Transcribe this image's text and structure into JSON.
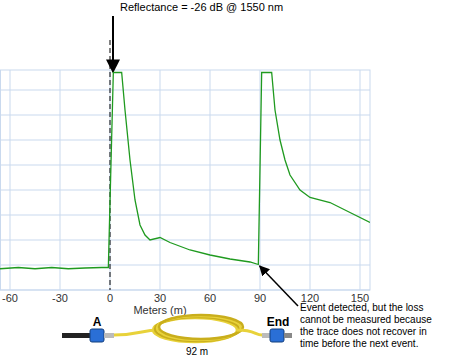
{
  "chart_data": {
    "type": "line",
    "x_label": "Meters (m)",
    "x": [
      -66,
      -55,
      -45,
      -35,
      -25,
      -15,
      -5,
      -1,
      2,
      3,
      7,
      9,
      12,
      15,
      18,
      21,
      24,
      30,
      36,
      48,
      60,
      72,
      84,
      89,
      91,
      97,
      99,
      102,
      105,
      108,
      114,
      120,
      132,
      144,
      156
    ],
    "series": [
      {
        "color": "#1f9a1f",
        "values": [
          0.85,
          0.9,
          0.85,
          0.9,
          0.85,
          0.88,
          0.9,
          0.9,
          8.7,
          8.7,
          8.7,
          7.2,
          5.2,
          3.6,
          2.6,
          2.2,
          2.0,
          2.1,
          1.9,
          1.6,
          1.4,
          1.24,
          1.12,
          1.02,
          8.7,
          8.7,
          7.2,
          6.0,
          5.2,
          4.6,
          4.0,
          3.7,
          3.5,
          3.1,
          2.7
        ]
      }
    ],
    "xlim": [
      -66,
      156
    ],
    "xticks": [
      -60,
      -30,
      0,
      30,
      60,
      90,
      120,
      150
    ],
    "ylim": [
      0,
      8.8
    ],
    "yticks": [
      0,
      1,
      2,
      3,
      4,
      5,
      6,
      7,
      8
    ],
    "grid": true,
    "tick_labels": "x",
    "annotations": [
      {
        "text": [
          "Reflectance = -26 dB @ 1550 nm"
        ],
        "x": 0
      },
      {
        "text": [
          "Event detected, but the loss",
          "cannot be measured because",
          "the trace does not recover in",
          "time before the next event."
        ],
        "x": 88,
        "y": 1.04
      }
    ]
  },
  "fiber_diagram": {
    "start_label": "A",
    "end_label": "End",
    "length_label": "92 m"
  }
}
